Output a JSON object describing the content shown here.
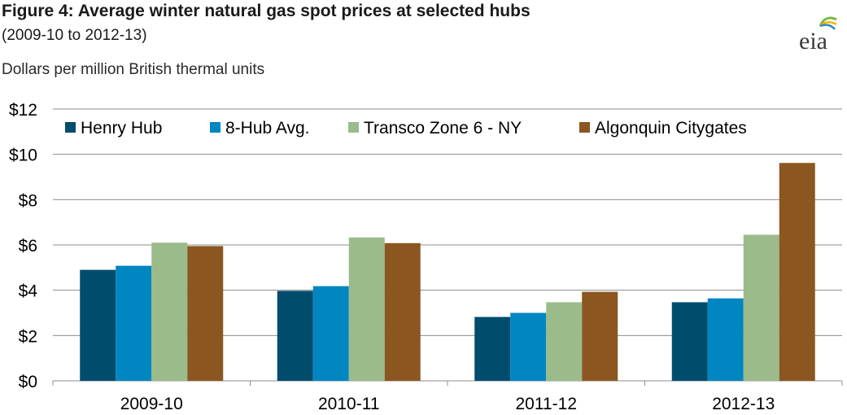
{
  "header": {
    "title": "Figure 4: Average winter natural gas spot prices at selected hubs",
    "subtitle": "(2009-10 to 2012-13)",
    "units": "Dollars per million British thermal units",
    "logo_text": "eia"
  },
  "chart_data": {
    "type": "bar",
    "title": "Figure 4: Average winter natural gas spot prices at selected hubs",
    "subtitle": "(2009-10 to 2012-13)",
    "ylabel": "Dollars per million British thermal units",
    "xlabel": "",
    "categories": [
      "2009-10",
      "2010-11",
      "2011-12",
      "2012-13"
    ],
    "ylim": [
      0,
      12
    ],
    "yticks": [
      0,
      2,
      4,
      6,
      8,
      10,
      12
    ],
    "ytick_labels": [
      "$0",
      "$2",
      "$4",
      "$6",
      "$8",
      "$10",
      "$12"
    ],
    "grid": true,
    "legend_position": "top-left",
    "series": [
      {
        "name": "Henry Hub",
        "color": "#004c6d",
        "values": [
          4.9,
          3.97,
          2.82,
          3.47
        ]
      },
      {
        "name": "8-Hub Avg.",
        "color": "#0086c1",
        "values": [
          5.08,
          4.18,
          3.0,
          3.64
        ]
      },
      {
        "name": "Transco Zone 6 - NY",
        "color": "#9bbb8b",
        "values": [
          6.1,
          6.33,
          3.47,
          6.45
        ]
      },
      {
        "name": "Algonquin Citygates",
        "color": "#8c5620",
        "values": [
          5.95,
          6.08,
          3.93,
          9.62
        ]
      }
    ]
  }
}
